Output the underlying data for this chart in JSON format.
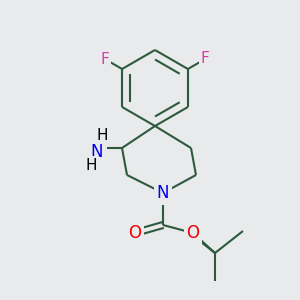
{
  "background_color": "#e8eaeb",
  "bond_color": "#2d5a3d",
  "bond_width": 1.5,
  "atom_colors": {
    "F": "#d63fa0",
    "N": "#0000ee",
    "O": "#ee0000",
    "H": "#000000",
    "C": "#2d5a3d"
  },
  "figsize": [
    3.0,
    3.0
  ],
  "dpi": 100
}
